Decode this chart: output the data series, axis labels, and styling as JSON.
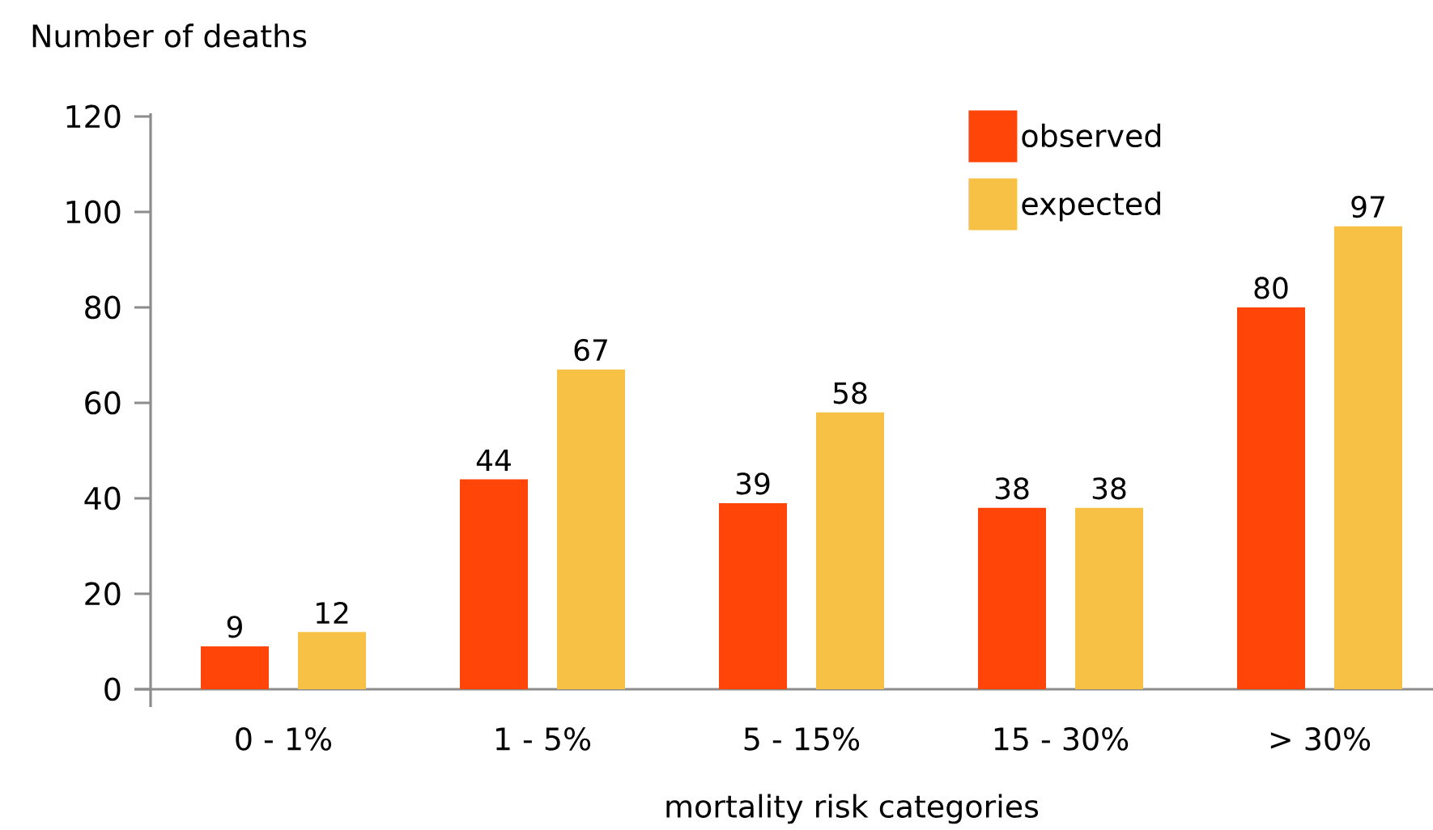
{
  "chart_data": {
    "type": "bar",
    "xlabel": "mortality risk categories",
    "ylabel": "Number of deaths",
    "categories": [
      "0 - 1%",
      "1 - 5%",
      "5 - 15%",
      "15 - 30%",
      "> 30%"
    ],
    "series": [
      {
        "name": "observed",
        "color": "#ff4608",
        "values": [
          9,
          44,
          39,
          38,
          80
        ]
      },
      {
        "name": "expected",
        "color": "#f7c145",
        "values": [
          12,
          67,
          58,
          38,
          97
        ]
      }
    ],
    "ylim": [
      0,
      120
    ],
    "yticks": [
      0,
      20,
      40,
      60,
      80,
      100,
      120
    ],
    "data_labels": true,
    "legend": "top right"
  }
}
